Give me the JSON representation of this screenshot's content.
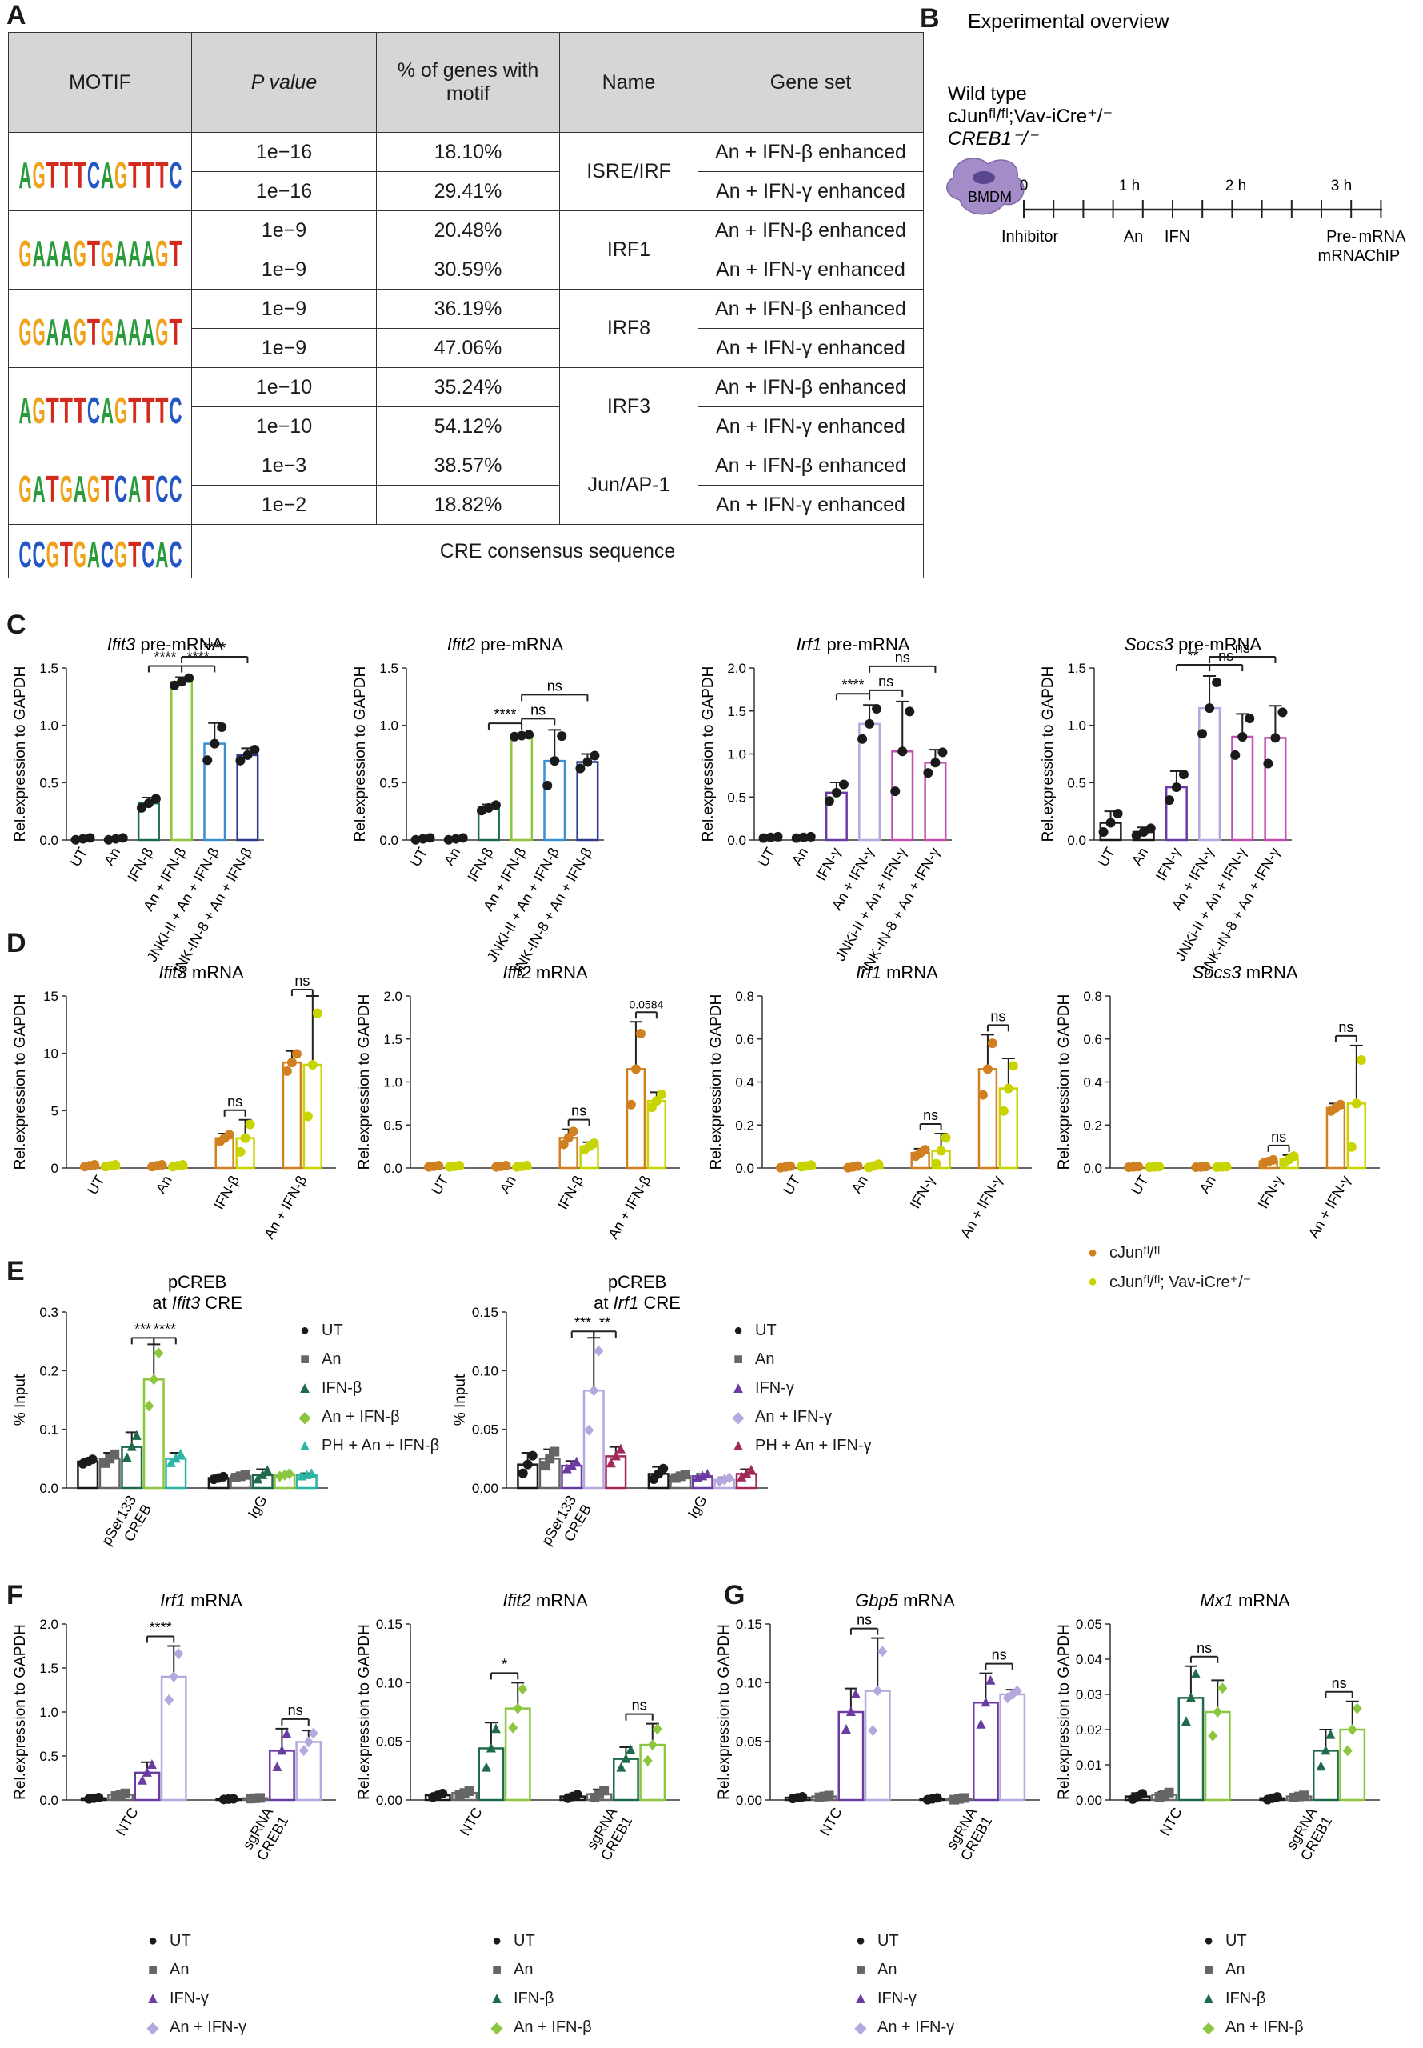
{
  "panels": {
    "A": "A",
    "B": "B",
    "C": "C",
    "D": "D",
    "E": "E",
    "F": "F",
    "G": "G"
  },
  "motif_table": {
    "headers": [
      "MOTIF",
      "P value",
      "% of genes with motif",
      "Name",
      "Gene set"
    ],
    "groups": [
      {
        "name": "ISRE/IRF",
        "logo": "AGTTTCAGTTTC",
        "rows": [
          [
            "1e−16",
            "18.10%",
            "An + IFN-β enhanced"
          ],
          [
            "1e−16",
            "29.41%",
            "An + IFN-γ enhanced"
          ]
        ]
      },
      {
        "name": "IRF1",
        "logo": "GAAAGTGAAAGT",
        "rows": [
          [
            "1e−9",
            "20.48%",
            "An + IFN-β enhanced"
          ],
          [
            "1e−9",
            "30.59%",
            "An + IFN-γ enhanced"
          ]
        ]
      },
      {
        "name": "IRF8",
        "logo": "GGAAGTGAAAGT",
        "rows": [
          [
            "1e−9",
            "36.19%",
            "An + IFN-β enhanced"
          ],
          [
            "1e−9",
            "47.06%",
            "An + IFN-γ enhanced"
          ]
        ]
      },
      {
        "name": "IRF3",
        "logo": "AGTTTCAGTTTC",
        "rows": [
          [
            "1e−10",
            "35.24%",
            "An + IFN-β enhanced"
          ],
          [
            "1e−10",
            "54.12%",
            "An + IFN-γ enhanced"
          ]
        ]
      },
      {
        "name": "Jun/AP-1",
        "logo": "GATGAGTCATCC",
        "rows": [
          [
            "1e−3",
            "38.57%",
            "An + IFN-β enhanced"
          ],
          [
            "1e−2",
            "18.82%",
            "An + IFN-γ enhanced"
          ]
        ]
      }
    ],
    "cre": {
      "logo": "CCGTGACGTCAC",
      "label": "CRE consensus sequence"
    }
  },
  "overview": {
    "title": "Experimental overview",
    "genotypes": [
      "Wild type",
      "cJunᶠˡ/ᶠˡ;Vav-iCre⁺/⁻",
      "CREB1⁻/⁻"
    ],
    "cell": "BMDM",
    "ticks": [
      "0",
      "1 h",
      "2 h",
      "3 h"
    ],
    "events": [
      "Inhibitor",
      "An",
      "IFN",
      "Pre-\nmRNA",
      "mRNA\nChIP"
    ]
  },
  "colors": {
    "black": "#1a1a1a",
    "beta_dark": "#1f6b4c",
    "beta_light": "#8cc63f",
    "blue": "#3a8fd0",
    "navy": "#2e3a8c",
    "gamma_dark": "#6a3ba0",
    "gamma_light": "#b4a8de",
    "pink": "#c04fb0",
    "orange": "#d08020",
    "yellow": "#c8d400",
    "teal": "#2ab5a5",
    "maroon": "#a0285a",
    "grey": "#666666"
  },
  "legends": {
    "D": [
      "cJunᶠˡ/ᶠˡ",
      "cJunᶠˡ/ᶠˡ; Vav-iCre⁺/⁻"
    ],
    "E1": [
      "UT",
      "An",
      "IFN-β",
      "An + IFN-β",
      "PH + An + IFN-β"
    ],
    "E2": [
      "UT",
      "An",
      "IFN-γ",
      "An + IFN-γ",
      "PH + An + IFN-γ"
    ],
    "F1": [
      "UT",
      "An",
      "IFN-γ",
      "An + IFN-γ"
    ],
    "F2": [
      "UT",
      "An",
      "IFN-β",
      "An + IFN-β"
    ],
    "G1": [
      "UT",
      "An",
      "IFN-γ",
      "An + IFN-γ"
    ],
    "G2": [
      "UT",
      "An",
      "IFN-β",
      "An + IFN-β"
    ]
  },
  "chart_data": [
    {
      "id": "C1",
      "type": "bar",
      "title": "Ifit3 pre-mRNA",
      "ylabel": "Rel.expression to GAPDH",
      "ylim": [
        0,
        1.5
      ],
      "yticks": [
        "0.0",
        "0.5",
        "1.0",
        "1.5"
      ],
      "categories": [
        "UT",
        "An",
        "IFN-β",
        "An + IFN-β",
        "JNKi-II + An + IFN-β",
        "JNK-IN-8 + An + IFN-β"
      ],
      "values": [
        0.01,
        0.01,
        0.32,
        1.38,
        0.84,
        0.74
      ],
      "err": [
        0.01,
        0.01,
        0.05,
        0.04,
        0.18,
        0.06
      ],
      "sig": [
        [
          3,
          4,
          "****"
        ],
        [
          2,
          3,
          "****"
        ],
        [
          3,
          5,
          "****"
        ]
      ]
    },
    {
      "id": "C2",
      "type": "bar",
      "title": "Ifit2 pre-mRNA",
      "ylabel": "Rel.expression to GAPDH",
      "ylim": [
        0,
        1.5
      ],
      "yticks": [
        "0.0",
        "0.5",
        "1.0",
        "1.5"
      ],
      "categories": [
        "UT",
        "An",
        "IFN-β",
        "An + IFN-β",
        "JNKi-II + An + IFN-β",
        "JNK-IN-8 + An + IFN-β"
      ],
      "values": [
        0.01,
        0.01,
        0.28,
        0.91,
        0.69,
        0.68
      ],
      "err": [
        0.01,
        0.01,
        0.03,
        0.01,
        0.27,
        0.07
      ],
      "sig": [
        [
          2,
          3,
          "****"
        ],
        [
          3,
          4,
          "ns"
        ],
        [
          3,
          5,
          "ns"
        ]
      ]
    },
    {
      "id": "C3",
      "type": "bar",
      "title": "Irf1 pre-mRNA",
      "ylabel": "Rel.expression to GAPDH",
      "ylim": [
        0,
        2.0
      ],
      "yticks": [
        "0.0",
        "0.5",
        "1.0",
        "1.5",
        "2.0"
      ],
      "categories": [
        "UT",
        "An",
        "IFN-γ",
        "An + IFN-γ",
        "JNKi-II + An + IFN-γ",
        "JNK-IN-8 + An + IFN-γ"
      ],
      "values": [
        0.03,
        0.03,
        0.55,
        1.35,
        1.03,
        0.9
      ],
      "err": [
        0.01,
        0.01,
        0.12,
        0.22,
        0.58,
        0.15
      ],
      "sig": [
        [
          2,
          3,
          "****"
        ],
        [
          3,
          4,
          "ns"
        ],
        [
          3,
          5,
          "ns"
        ]
      ]
    },
    {
      "id": "C4",
      "type": "bar",
      "title": "Socs3 pre-mRNA",
      "ylabel": "Rel.expression to GAPDH",
      "ylim": [
        0,
        1.5
      ],
      "yticks": [
        "0.0",
        "0.5",
        "1.0",
        "1.5"
      ],
      "categories": [
        "UT",
        "An",
        "IFN-γ",
        "An + IFN-γ",
        "JNKi-II + An + IFN-γ",
        "JNK-IN-8 + An + IFN-γ"
      ],
      "values": [
        0.15,
        0.07,
        0.46,
        1.15,
        0.9,
        0.89
      ],
      "err": [
        0.1,
        0.04,
        0.14,
        0.28,
        0.2,
        0.28
      ],
      "sig": [
        [
          2,
          3,
          "**"
        ],
        [
          3,
          4,
          "ns"
        ],
        [
          3,
          5,
          "ns"
        ]
      ]
    },
    {
      "id": "D1",
      "type": "bar",
      "title": "Ifit3 mRNA",
      "ylabel": "Rel.expression to GAPDH",
      "ylim": [
        0,
        15
      ],
      "yticks": [
        "0",
        "5",
        "10",
        "15"
      ],
      "categories": [
        "UT",
        "An",
        "IFN-β",
        "An + IFN-β"
      ],
      "series": [
        {
          "name": "cJun fl/fl",
          "values": [
            0.2,
            0.2,
            2.6,
            9.2
          ],
          "err": [
            0.1,
            0.1,
            0.4,
            1.0
          ]
        },
        {
          "name": "cJun fl/fl; Vav-iCre+/-",
          "values": [
            0.2,
            0.2,
            2.6,
            9.0
          ],
          "err": [
            0.1,
            0.1,
            1.6,
            6.0
          ]
        }
      ],
      "sig": [
        [
          2,
          "ns"
        ],
        [
          3,
          "ns"
        ]
      ]
    },
    {
      "id": "D2",
      "type": "bar",
      "title": "Ifit2 mRNA",
      "ylabel": "Rel.expression to GAPDH",
      "ylim": [
        0,
        2.0
      ],
      "yticks": [
        "0.0",
        "0.5",
        "1.0",
        "1.5",
        "2.0"
      ],
      "categories": [
        "UT",
        "An",
        "IFN-β",
        "An + IFN-β"
      ],
      "series": [
        {
          "name": "cJun fl/fl",
          "values": [
            0.02,
            0.02,
            0.35,
            1.15
          ],
          "err": [
            0.01,
            0.01,
            0.1,
            0.55
          ]
        },
        {
          "name": "cJun fl/fl; Vav-iCre+/-",
          "values": [
            0.02,
            0.02,
            0.25,
            0.78
          ],
          "err": [
            0.01,
            0.01,
            0.05,
            0.1
          ]
        }
      ],
      "sig": [
        [
          2,
          "ns"
        ],
        [
          3,
          "0.0584"
        ]
      ]
    },
    {
      "id": "D3",
      "type": "bar",
      "title": "Irf1 mRNA",
      "ylabel": "Rel.expression to GAPDH",
      "ylim": [
        0,
        0.8
      ],
      "yticks": [
        "0.0",
        "0.2",
        "0.4",
        "0.6",
        "0.8"
      ],
      "categories": [
        "UT",
        "An",
        "IFN-γ",
        "An + IFN-γ"
      ],
      "series": [
        {
          "name": "cJun fl/fl",
          "values": [
            0.005,
            0.005,
            0.07,
            0.46
          ],
          "err": [
            0.005,
            0.005,
            0.02,
            0.16
          ]
        },
        {
          "name": "cJun fl/fl; Vav-iCre+/-",
          "values": [
            0.01,
            0.01,
            0.08,
            0.37
          ],
          "err": [
            0.005,
            0.01,
            0.08,
            0.14
          ]
        }
      ],
      "sig": [
        [
          2,
          "ns"
        ],
        [
          3,
          "ns"
        ]
      ]
    },
    {
      "id": "D4",
      "type": "bar",
      "title": "Socs3 mRNA",
      "ylabel": "Rel.expression to GAPDH",
      "ylim": [
        0,
        0.8
      ],
      "yticks": [
        "0.0",
        "0.2",
        "0.4",
        "0.6",
        "0.8"
      ],
      "categories": [
        "UT",
        "An",
        "IFN-γ",
        "An + IFN-γ"
      ],
      "series": [
        {
          "name": "cJun fl/fl",
          "values": [
            0.005,
            0.005,
            0.03,
            0.28
          ],
          "err": [
            0.002,
            0.002,
            0.01,
            0.02
          ]
        },
        {
          "name": "cJun fl/fl; Vav-iCre+/-",
          "values": [
            0.005,
            0.005,
            0.04,
            0.3
          ],
          "err": [
            0.002,
            0.002,
            0.02,
            0.27
          ]
        }
      ],
      "sig": [
        [
          2,
          "ns"
        ],
        [
          3,
          "ns"
        ]
      ]
    },
    {
      "id": "E1",
      "type": "bar",
      "title": "pCREB at Ifit3 CRE",
      "ylabel": "% Input",
      "ylim": [
        0,
        0.3
      ],
      "yticks": [
        "0.0",
        "0.1",
        "0.2",
        "0.3"
      ],
      "categories": [
        "pSer133 CREB",
        "IgG"
      ],
      "series": [
        {
          "name": "UT",
          "values": [
            0.045,
            0.017
          ]
        },
        {
          "name": "An",
          "values": [
            0.05,
            0.02
          ]
        },
        {
          "name": "IFN-β",
          "values": [
            0.07,
            0.022
          ]
        },
        {
          "name": "An + IFN-β",
          "values": [
            0.185,
            0.022
          ]
        },
        {
          "name": "PH + An + IFN-β",
          "values": [
            0.05,
            0.022
          ]
        }
      ],
      "err": [
        [
          0.005,
          0.003
        ],
        [
          0.01,
          0.003
        ],
        [
          0.025,
          0.01
        ],
        [
          0.06,
          0.003
        ],
        [
          0.01,
          0.003
        ]
      ],
      "sig": [
        [
          2,
          3,
          "***"
        ],
        [
          3,
          4,
          "****"
        ]
      ]
    },
    {
      "id": "E2",
      "type": "bar",
      "title": "pCREB at Irf1 CRE",
      "ylabel": "% Input",
      "ylim": [
        0,
        0.15
      ],
      "yticks": [
        "0.00",
        "0.05",
        "0.10",
        "0.15"
      ],
      "categories": [
        "pSer133 CREB",
        "IgG"
      ],
      "series": [
        {
          "name": "UT",
          "values": [
            0.02,
            0.012
          ]
        },
        {
          "name": "An",
          "values": [
            0.025,
            0.01
          ]
        },
        {
          "name": "IFN-γ",
          "values": [
            0.019,
            0.01
          ]
        },
        {
          "name": "An + IFN-γ",
          "values": [
            0.083,
            0.007
          ]
        },
        {
          "name": "PH + An + IFN-γ",
          "values": [
            0.027,
            0.012
          ]
        }
      ],
      "err": [
        [
          0.01,
          0.006
        ],
        [
          0.008,
          0.002
        ],
        [
          0.004,
          0.002
        ],
        [
          0.045,
          0.002
        ],
        [
          0.008,
          0.004
        ]
      ],
      "sig": [
        [
          2,
          3,
          "***"
        ],
        [
          3,
          4,
          "**"
        ]
      ]
    },
    {
      "id": "F1",
      "type": "bar",
      "title": "Irf1 mRNA",
      "ylabel": "Rel.expression to GAPDH",
      "ylim": [
        0,
        2.0
      ],
      "yticks": [
        "0.0",
        "0.5",
        "1.0",
        "1.5",
        "2.0"
      ],
      "categories": [
        "NTC",
        "sgRNA CREB1"
      ],
      "series": [
        {
          "name": "UT",
          "values": [
            0.02,
            0.01
          ]
        },
        {
          "name": "An",
          "values": [
            0.06,
            0.02
          ]
        },
        {
          "name": "IFN-γ",
          "values": [
            0.31,
            0.56
          ]
        },
        {
          "name": "An + IFN-γ",
          "values": [
            1.4,
            0.66
          ]
        }
      ],
      "err": [
        [
          0.01,
          0.005
        ],
        [
          0.02,
          0.005
        ],
        [
          0.12,
          0.25
        ],
        [
          0.35,
          0.13
        ]
      ],
      "sig": [
        [
          0,
          2,
          3,
          "****"
        ],
        [
          1,
          2,
          3,
          "ns"
        ]
      ]
    },
    {
      "id": "F2",
      "type": "bar",
      "title": "Ifit2 mRNA",
      "ylabel": "Rel.expression to GAPDH",
      "ylim": [
        0,
        0.15
      ],
      "yticks": [
        "0.00",
        "0.05",
        "0.10",
        "0.15"
      ],
      "categories": [
        "NTC",
        "sgRNA CREB1"
      ],
      "series": [
        {
          "name": "UT",
          "values": [
            0.004,
            0.003
          ]
        },
        {
          "name": "An",
          "values": [
            0.006,
            0.005
          ]
        },
        {
          "name": "IFN-β",
          "values": [
            0.044,
            0.035
          ]
        },
        {
          "name": "An + IFN-β",
          "values": [
            0.078,
            0.047
          ]
        }
      ],
      "err": [
        [
          0.002,
          0.002
        ],
        [
          0.002,
          0.004
        ],
        [
          0.022,
          0.01
        ],
        [
          0.022,
          0.018
        ]
      ],
      "sig": [
        [
          0,
          2,
          3,
          "*"
        ],
        [
          1,
          2,
          3,
          "ns"
        ]
      ]
    },
    {
      "id": "G1",
      "type": "bar",
      "title": "Gbp5 mRNA",
      "ylabel": "Rel.expression to GAPDH",
      "ylim": [
        0,
        0.15
      ],
      "yticks": [
        "0.00",
        "0.05",
        "0.10",
        "0.15"
      ],
      "categories": [
        "NTC",
        "sgRNA CREB1"
      ],
      "series": [
        {
          "name": "UT",
          "values": [
            0.002,
            0.001
          ]
        },
        {
          "name": "An",
          "values": [
            0.003,
            0.001
          ]
        },
        {
          "name": "IFN-γ",
          "values": [
            0.075,
            0.083
          ]
        },
        {
          "name": "An + IFN-γ",
          "values": [
            0.093,
            0.09
          ]
        }
      ],
      "err": [
        [
          0.001,
          0.001
        ],
        [
          0.001,
          0.001
        ],
        [
          0.02,
          0.025
        ],
        [
          0.045,
          0.004
        ]
      ],
      "sig": [
        [
          0,
          2,
          3,
          "ns"
        ],
        [
          1,
          2,
          3,
          "ns"
        ]
      ]
    },
    {
      "id": "G2",
      "type": "bar",
      "title": "Mx1 mRNA",
      "ylabel": "Rel.expression to GAPDH",
      "ylim": [
        0,
        0.05
      ],
      "yticks": [
        "0.00",
        "0.01",
        "0.02",
        "0.03",
        "0.04",
        "0.05"
      ],
      "categories": [
        "NTC",
        "sgRNA CREB1"
      ],
      "series": [
        {
          "name": "UT",
          "values": [
            0.001,
            0.0005
          ]
        },
        {
          "name": "An",
          "values": [
            0.0015,
            0.001
          ]
        },
        {
          "name": "IFN-β",
          "values": [
            0.029,
            0.014
          ]
        },
        {
          "name": "An + IFN-β",
          "values": [
            0.025,
            0.02
          ]
        }
      ],
      "err": [
        [
          0.001,
          0.0005
        ],
        [
          0.0008,
          0.0004
        ],
        [
          0.009,
          0.006
        ],
        [
          0.009,
          0.008
        ]
      ],
      "sig": [
        [
          0,
          2,
          3,
          "ns"
        ],
        [
          1,
          2,
          3,
          "ns"
        ]
      ]
    }
  ]
}
